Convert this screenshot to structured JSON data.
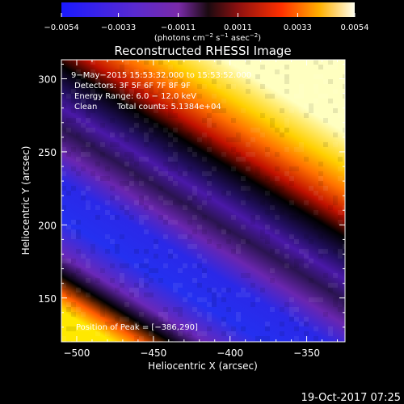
{
  "chart_data": {
    "type": "heatmap",
    "title": "Reconstructed RHESSI Image",
    "xlabel": "Heliocentric X (arcsec)",
    "ylabel": "Heliocentric Y (arcsec)",
    "xlim": [
      -510,
      -325
    ],
    "ylim": [
      120,
      313
    ],
    "xticks": [
      -500,
      -450,
      -400,
      -350
    ],
    "xtick_labels": [
      "−500",
      "−450",
      "−400",
      "−350"
    ],
    "yticks": [
      150,
      200,
      250,
      300
    ],
    "ytick_labels": [
      "150",
      "200",
      "250",
      "300"
    ],
    "colorbar": {
      "range": [
        -0.0054,
        0.0054
      ],
      "ticks": [
        -0.0054,
        -0.0033,
        -0.0011,
        0.0011,
        0.0033,
        0.0054
      ],
      "tick_labels": [
        "−0.0054",
        "−0.0033",
        "−0.0011",
        "0.0011",
        "0.0033",
        "0.0054"
      ],
      "unit_parts": [
        "(photons cm",
        "−2",
        " s",
        "−1",
        " asec",
        "−2",
        ")"
      ]
    },
    "annotations": {
      "line1": "9−May−2015 15:53:32.000 to 15:53:52.000",
      "line2": "Detectors: 3F 5F 6F 7F 8F 9F",
      "line3": "Energy Range: 6.0 − 12.0 keV",
      "line4_a": "Clean",
      "line4_b": "Total counts: 5.1384e+04",
      "peak": "Position of Peak = [−386,290]"
    },
    "peak_position": [
      -386,
      290
    ],
    "grid": false
  },
  "footer": {
    "timestamp": "19-Oct-2017 07:25"
  }
}
